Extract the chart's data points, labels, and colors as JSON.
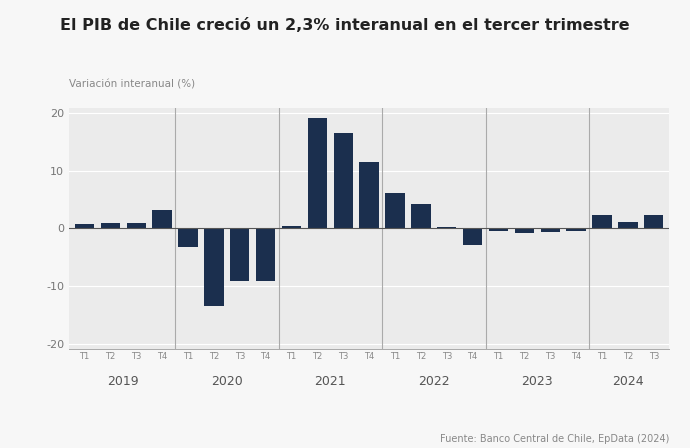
{
  "title": "El PIB de Chile creció un 2,3% interanual en el tercer trimestre",
  "ylabel": "Variación interanual (%)",
  "source": "Fuente: Banco Central de Chile, EpData (2024)",
  "bar_color": "#1b2f4e",
  "fig_bg_color": "#f7f7f7",
  "plot_bg_color": "#ebebeb",
  "ylim": [
    -20,
    20
  ],
  "yticks": [
    -20,
    -10,
    0,
    10,
    20
  ],
  "labels": [
    "T1",
    "T2",
    "T3",
    "T4",
    "T1",
    "T2",
    "T3",
    "T4",
    "T1",
    "T2",
    "T3",
    "T4",
    "T1",
    "T2",
    "T3",
    "T4",
    "T1",
    "T2",
    "T3",
    "T4",
    "T1",
    "T2",
    "T3"
  ],
  "year_labels": [
    "2019",
    "2020",
    "2021",
    "2022",
    "2023",
    "2024"
  ],
  "values": [
    0.8,
    0.9,
    1.0,
    3.2,
    -3.3,
    -13.5,
    -9.1,
    -9.1,
    0.4,
    19.1,
    16.5,
    11.5,
    6.2,
    4.2,
    0.2,
    -2.8,
    -0.5,
    -0.8,
    -0.6,
    -0.5,
    2.4,
    1.2,
    2.3
  ],
  "year_dividers": [
    4,
    8,
    12,
    16,
    20
  ],
  "year_centers": [
    1.5,
    5.5,
    9.5,
    13.5,
    17.5,
    21.0
  ]
}
